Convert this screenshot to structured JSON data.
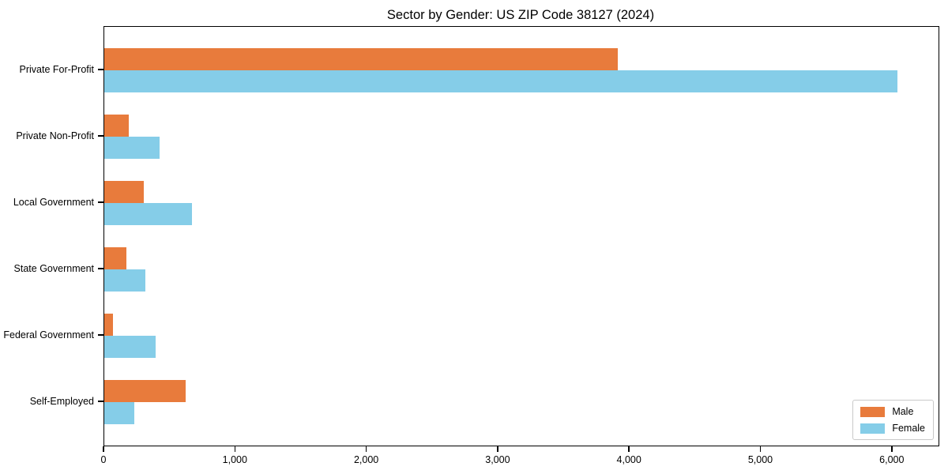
{
  "figure": {
    "background": "#ffffff",
    "axis_color": "#000000"
  },
  "chart_data": {
    "type": "bar",
    "orientation": "horizontal",
    "title": "Sector by Gender: US ZIP Code 38127 (2024)",
    "categories": [
      "Private For-Profit",
      "Private Non-Profit",
      "Local Government",
      "State Government",
      "Federal Government",
      "Self-Employed"
    ],
    "series": [
      {
        "name": "Male",
        "color": "#e87b3c",
        "values": [
          3910,
          185,
          300,
          170,
          65,
          620
        ]
      },
      {
        "name": "Female",
        "color": "#85cde8",
        "values": [
          6040,
          420,
          670,
          310,
          390,
          230
        ]
      }
    ],
    "xlabel": "",
    "ylabel": "",
    "xlim": [
      0,
      6350
    ],
    "xticks": [
      0,
      1000,
      2000,
      3000,
      4000,
      5000,
      6000
    ],
    "xtick_labels": [
      "0",
      "1,000",
      "2,000",
      "3,000",
      "4,000",
      "5,000",
      "6,000"
    ],
    "grid": false,
    "legend": {
      "position": "lower right",
      "entries": [
        "Male",
        "Female"
      ]
    }
  }
}
